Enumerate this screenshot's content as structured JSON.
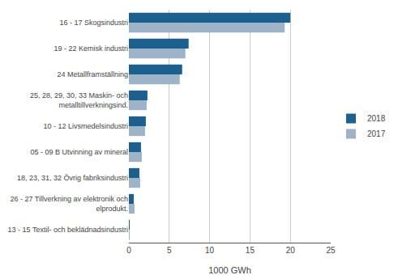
{
  "chart_data": {
    "type": "bar",
    "orientation": "horizontal",
    "categories": [
      "16 - 17 Skogsindustri",
      "19 - 22 Kemisk industri",
      "24 Metallframställning",
      "25, 28, 29, 30, 33 Maskin- och\nmetalltillverkningsind.",
      "10 - 12 Livsmedelsindustri",
      "05 - 09 B Utvinning av mineral",
      "18, 23, 31, 32 Övrig fabriksindustri",
      "26 - 27 Tillverkning av elektronik och\nelprodukt.",
      "13 - 15 Textil- och beklädnadsindustri"
    ],
    "series": [
      {
        "name": "2018",
        "color": "#1c6090",
        "values": [
          20.0,
          7.4,
          6.6,
          2.3,
          2.1,
          1.5,
          1.3,
          0.6,
          0.1
        ]
      },
      {
        "name": "2017",
        "color": "#9eb3c8",
        "values": [
          19.3,
          7.0,
          6.3,
          2.2,
          2.0,
          1.6,
          1.4,
          0.7,
          0.1
        ]
      }
    ],
    "xlabel": "1000 GWh",
    "xlim": [
      0,
      25
    ],
    "xticks": [
      0,
      5,
      10,
      15,
      20,
      25
    ],
    "grid": true,
    "legend": "right"
  }
}
